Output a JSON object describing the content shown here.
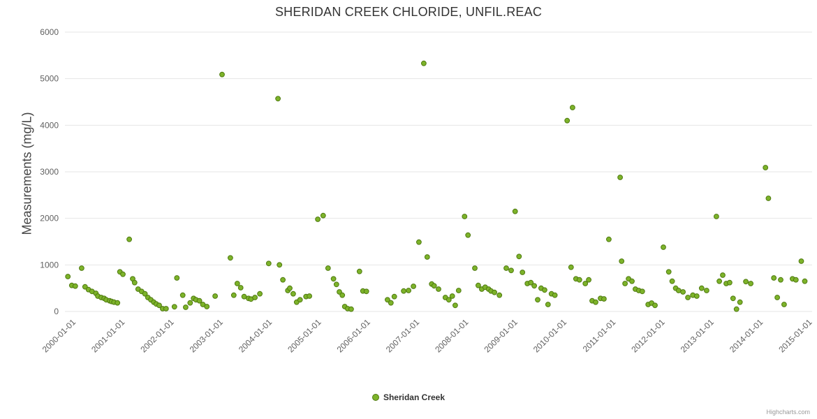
{
  "title": "SHERIDAN CREEK CHLORIDE, UNFIL.REAC",
  "credits": "Highcharts.com",
  "legend": {
    "series_label": "Sheridan Creek"
  },
  "colors": {
    "point_fill": "#7db32a",
    "point_stroke": "#4f7a10",
    "grid": "#e6e6e6",
    "axis_label": "#606060",
    "title": "#333333"
  },
  "chart_data": {
    "type": "scatter",
    "title": "SHERIDAN CREEK CHLORIDE, UNFIL.REAC",
    "xlabel": "",
    "ylabel": "Measurements (mg/L)",
    "ylim": [
      0,
      6000
    ],
    "yticks": [
      0,
      1000,
      2000,
      3000,
      4000,
      5000,
      6000
    ],
    "x_range": [
      1999.83,
      2015.05
    ],
    "xtick_start_year": 2000,
    "xticks": [
      "2000-01-01",
      "2001-01-01",
      "2002-01-01",
      "2003-01-01",
      "2004-01-01",
      "2005-01-01",
      "2006-01-01",
      "2007-01-01",
      "2008-01-01",
      "2009-01-01",
      "2010-01-01",
      "2011-01-01",
      "2012-01-01",
      "2013-01-01",
      "2014-01-01",
      "2015-01-01"
    ],
    "legend_position": "bottom-center",
    "grid": true,
    "series": [
      {
        "name": "Sheridan Creek",
        "points": [
          [
            1999.89,
            750
          ],
          [
            1999.97,
            560
          ],
          [
            2000.04,
            545
          ],
          [
            2000.17,
            930
          ],
          [
            2000.24,
            530
          ],
          [
            2000.31,
            470
          ],
          [
            2000.38,
            430
          ],
          [
            2000.46,
            390
          ],
          [
            2000.5,
            330
          ],
          [
            2000.57,
            300
          ],
          [
            2000.63,
            280
          ],
          [
            2000.67,
            250
          ],
          [
            2000.74,
            230
          ],
          [
            2000.78,
            215
          ],
          [
            2000.83,
            200
          ],
          [
            2000.9,
            185
          ],
          [
            2000.95,
            850
          ],
          [
            2001.01,
            800
          ],
          [
            2001.14,
            1550
          ],
          [
            2001.21,
            700
          ],
          [
            2001.25,
            620
          ],
          [
            2001.32,
            480
          ],
          [
            2001.39,
            430
          ],
          [
            2001.46,
            380
          ],
          [
            2001.52,
            300
          ],
          [
            2001.58,
            250
          ],
          [
            2001.64,
            200
          ],
          [
            2001.69,
            160
          ],
          [
            2001.75,
            130
          ],
          [
            2001.82,
            60
          ],
          [
            2001.89,
            60
          ],
          [
            2002.06,
            100
          ],
          [
            2002.11,
            720
          ],
          [
            2002.23,
            350
          ],
          [
            2002.29,
            90
          ],
          [
            2002.38,
            185
          ],
          [
            2002.45,
            280
          ],
          [
            2002.5,
            250
          ],
          [
            2002.57,
            230
          ],
          [
            2002.64,
            150
          ],
          [
            2002.72,
            105
          ],
          [
            2002.89,
            330
          ],
          [
            2003.03,
            5090
          ],
          [
            2003.2,
            1150
          ],
          [
            2003.27,
            350
          ],
          [
            2003.34,
            600
          ],
          [
            2003.41,
            510
          ],
          [
            2003.48,
            320
          ],
          [
            2003.57,
            280
          ],
          [
            2003.62,
            265
          ],
          [
            2003.7,
            300
          ],
          [
            2003.8,
            380
          ],
          [
            2003.98,
            1030
          ],
          [
            2004.17,
            4570
          ],
          [
            2004.2,
            1000
          ],
          [
            2004.27,
            680
          ],
          [
            2004.37,
            450
          ],
          [
            2004.41,
            500
          ],
          [
            2004.48,
            380
          ],
          [
            2004.55,
            200
          ],
          [
            2004.62,
            250
          ],
          [
            2004.74,
            320
          ],
          [
            2004.81,
            330
          ],
          [
            2004.98,
            1980
          ],
          [
            2005.09,
            2060
          ],
          [
            2005.19,
            930
          ],
          [
            2005.3,
            700
          ],
          [
            2005.36,
            580
          ],
          [
            2005.42,
            420
          ],
          [
            2005.48,
            350
          ],
          [
            2005.53,
            105
          ],
          [
            2005.59,
            60
          ],
          [
            2005.66,
            50
          ],
          [
            2005.83,
            860
          ],
          [
            2005.9,
            440
          ],
          [
            2005.97,
            430
          ],
          [
            2006.4,
            250
          ],
          [
            2006.47,
            185
          ],
          [
            2006.54,
            320
          ],
          [
            2006.73,
            440
          ],
          [
            2006.83,
            450
          ],
          [
            2006.93,
            540
          ],
          [
            2007.04,
            1490
          ],
          [
            2007.14,
            5330
          ],
          [
            2007.21,
            1170
          ],
          [
            2007.3,
            590
          ],
          [
            2007.35,
            550
          ],
          [
            2007.44,
            480
          ],
          [
            2007.58,
            300
          ],
          [
            2007.65,
            250
          ],
          [
            2007.72,
            330
          ],
          [
            2007.78,
            130
          ],
          [
            2007.85,
            450
          ],
          [
            2007.97,
            2040
          ],
          [
            2008.04,
            1640
          ],
          [
            2008.18,
            930
          ],
          [
            2008.25,
            560
          ],
          [
            2008.32,
            480
          ],
          [
            2008.39,
            520
          ],
          [
            2008.46,
            480
          ],
          [
            2008.51,
            440
          ],
          [
            2008.58,
            410
          ],
          [
            2008.68,
            350
          ],
          [
            2008.82,
            930
          ],
          [
            2008.92,
            880
          ],
          [
            2009.0,
            2150
          ],
          [
            2009.08,
            1180
          ],
          [
            2009.15,
            840
          ],
          [
            2009.25,
            600
          ],
          [
            2009.32,
            620
          ],
          [
            2009.39,
            550
          ],
          [
            2009.46,
            250
          ],
          [
            2009.53,
            500
          ],
          [
            2009.6,
            460
          ],
          [
            2009.67,
            150
          ],
          [
            2009.74,
            380
          ],
          [
            2009.81,
            350
          ],
          [
            2010.06,
            4100
          ],
          [
            2010.14,
            950
          ],
          [
            2010.17,
            4380
          ],
          [
            2010.24,
            700
          ],
          [
            2010.31,
            680
          ],
          [
            2010.43,
            600
          ],
          [
            2010.5,
            680
          ],
          [
            2010.57,
            230
          ],
          [
            2010.64,
            200
          ],
          [
            2010.74,
            280
          ],
          [
            2010.81,
            270
          ],
          [
            2010.91,
            1550
          ],
          [
            2011.14,
            2880
          ],
          [
            2011.17,
            1080
          ],
          [
            2011.24,
            600
          ],
          [
            2011.31,
            700
          ],
          [
            2011.38,
            650
          ],
          [
            2011.45,
            480
          ],
          [
            2011.52,
            450
          ],
          [
            2011.59,
            430
          ],
          [
            2011.71,
            150
          ],
          [
            2011.78,
            180
          ],
          [
            2011.85,
            130
          ],
          [
            2012.02,
            1380
          ],
          [
            2012.13,
            850
          ],
          [
            2012.2,
            650
          ],
          [
            2012.27,
            500
          ],
          [
            2012.33,
            450
          ],
          [
            2012.42,
            420
          ],
          [
            2012.52,
            300
          ],
          [
            2012.62,
            350
          ],
          [
            2012.7,
            330
          ],
          [
            2012.8,
            500
          ],
          [
            2012.9,
            450
          ],
          [
            2013.1,
            2040
          ],
          [
            2013.16,
            650
          ],
          [
            2013.23,
            780
          ],
          [
            2013.3,
            600
          ],
          [
            2013.37,
            620
          ],
          [
            2013.44,
            280
          ],
          [
            2013.51,
            50
          ],
          [
            2013.58,
            200
          ],
          [
            2013.7,
            640
          ],
          [
            2013.8,
            600
          ],
          [
            2014.1,
            3090
          ],
          [
            2014.16,
            2430
          ],
          [
            2014.27,
            720
          ],
          [
            2014.34,
            300
          ],
          [
            2014.41,
            680
          ],
          [
            2014.48,
            150
          ],
          [
            2014.65,
            700
          ],
          [
            2014.72,
            680
          ],
          [
            2014.83,
            1080
          ],
          [
            2014.9,
            650
          ]
        ]
      }
    ]
  }
}
